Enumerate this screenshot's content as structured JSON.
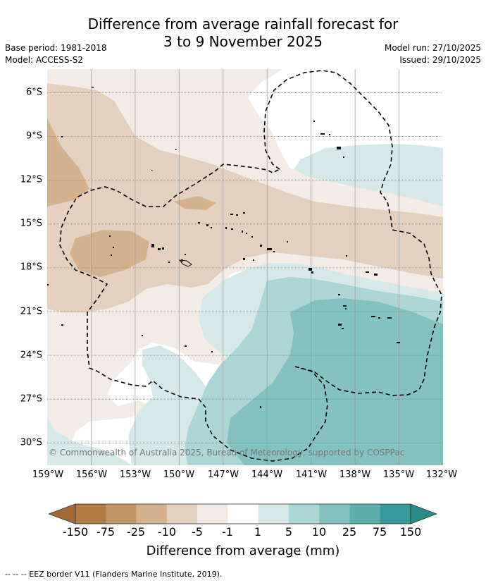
{
  "title": {
    "line1": "Difference from average rainfall forecast for",
    "line2": "3 to 9 November 2025"
  },
  "meta": {
    "base_period": "Base period: 1981-2018",
    "model": "Model: ACCESS-S2",
    "model_run": "Model run: 27/10/2025",
    "issued": "Issued: 29/10/2025"
  },
  "map": {
    "copyright": "© Commonwealth of Australia 2025, Bureau of Meteorology, supported by COSPPac",
    "lon_ticks": [
      "159°W",
      "156°W",
      "153°W",
      "150°W",
      "147°W",
      "144°W",
      "141°W",
      "138°W",
      "135°W",
      "132°W"
    ],
    "lat_ticks": [
      "6°S",
      "9°S",
      "12°S",
      "15°S",
      "18°S",
      "21°S",
      "24°S",
      "27°S",
      "30°S"
    ]
  },
  "colorbar": {
    "label": "Difference from average (mm)",
    "ticks": [
      "-150",
      "-75",
      "-25",
      "-10",
      "-5",
      "-1",
      "1",
      "5",
      "10",
      "25",
      "75",
      "150"
    ],
    "colors": {
      "below_min": "#a26a34",
      "bands": [
        "#b27a44",
        "#c3956b",
        "#d4b28f",
        "#e3d0be",
        "#f3ebe5",
        "#ffffff",
        "#d6e9e8",
        "#acd6d5",
        "#84c1c1",
        "#5eadad",
        "#379a9a"
      ],
      "above_max": "#2d8a8a"
    }
  },
  "legend": {
    "text": "-- -- -- EEZ border V11 (Flanders Marine Institute, 2019)."
  }
}
